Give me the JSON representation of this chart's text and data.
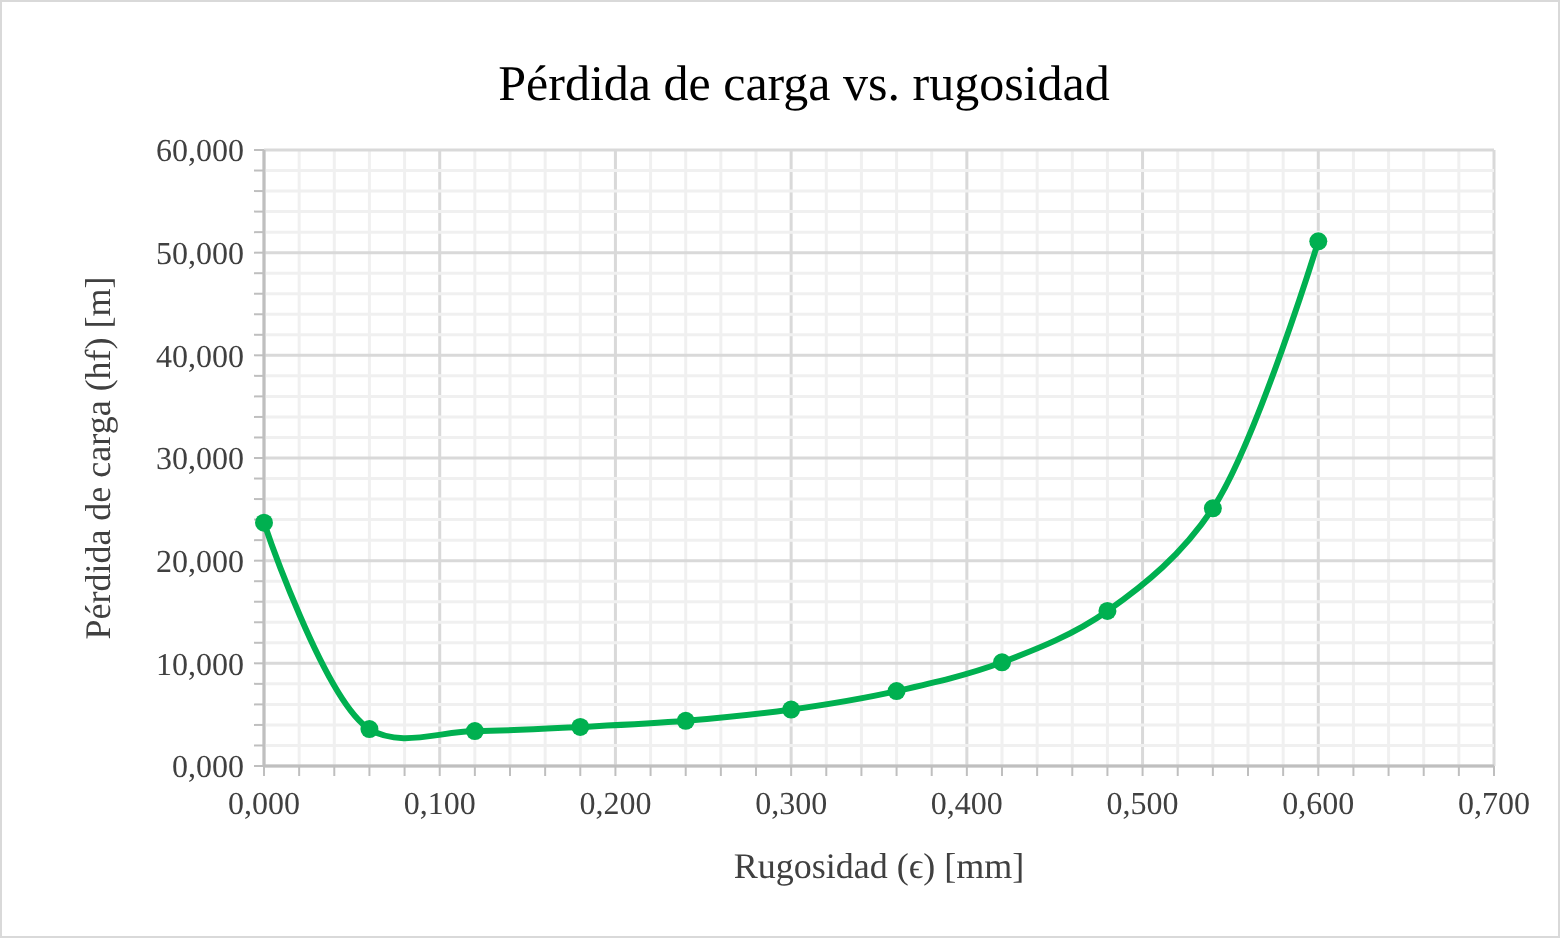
{
  "chart_data": {
    "type": "line",
    "title": "Pérdida de carga vs. rugosidad",
    "xlabel": "Rugosidad (ϵ) [mm]",
    "ylabel": "Pérdida de carga (hf) [m]",
    "x": [
      0,
      0.06,
      0.12,
      0.18,
      0.24,
      0.3,
      0.36,
      0.42,
      0.48,
      0.54,
      0.6
    ],
    "series": [
      {
        "color": "#00b050",
        "values": [
          23.7,
          3.6,
          3.4,
          3.8,
          4.4,
          5.5,
          7.3,
          10.1,
          15.1,
          25.1,
          51.1
        ]
      }
    ],
    "xlim": [
      0,
      0.7
    ],
    "ylim": [
      0,
      60
    ],
    "xticks": [
      {
        "value": 0,
        "label": "0,000"
      },
      {
        "value": 0.02,
        "label": null
      },
      {
        "value": 0.04,
        "label": null
      },
      {
        "value": 0.06,
        "label": null
      },
      {
        "value": 0.08,
        "label": null
      },
      {
        "value": 0.1,
        "label": "0,100"
      },
      {
        "value": 0.12,
        "label": null
      },
      {
        "value": 0.14,
        "label": null
      },
      {
        "value": 0.16,
        "label": null
      },
      {
        "value": 0.18,
        "label": null
      },
      {
        "value": 0.2,
        "label": "0,200"
      },
      {
        "value": 0.22,
        "label": null
      },
      {
        "value": 0.24,
        "label": null
      },
      {
        "value": 0.26,
        "label": null
      },
      {
        "value": 0.28,
        "label": null
      },
      {
        "value": 0.3,
        "label": "0,300"
      },
      {
        "value": 0.32,
        "label": null
      },
      {
        "value": 0.34,
        "label": null
      },
      {
        "value": 0.36,
        "label": null
      },
      {
        "value": 0.38,
        "label": null
      },
      {
        "value": 0.4,
        "label": "0,400"
      },
      {
        "value": 0.42,
        "label": null
      },
      {
        "value": 0.44,
        "label": null
      },
      {
        "value": 0.46,
        "label": null
      },
      {
        "value": 0.48,
        "label": null
      },
      {
        "value": 0.5,
        "label": "0,500"
      },
      {
        "value": 0.52,
        "label": null
      },
      {
        "value": 0.54,
        "label": null
      },
      {
        "value": 0.56,
        "label": null
      },
      {
        "value": 0.58,
        "label": null
      },
      {
        "value": 0.6,
        "label": "0,600"
      },
      {
        "value": 0.62,
        "label": null
      },
      {
        "value": 0.64,
        "label": null
      },
      {
        "value": 0.66,
        "label": null
      },
      {
        "value": 0.68,
        "label": null
      },
      {
        "value": 0.7,
        "label": "0,700"
      }
    ],
    "yticks": [
      {
        "value": 0,
        "label": "0,000"
      },
      {
        "value": 2,
        "label": null
      },
      {
        "value": 4,
        "label": null
      },
      {
        "value": 6,
        "label": null
      },
      {
        "value": 8,
        "label": null
      },
      {
        "value": 10,
        "label": "10,000"
      },
      {
        "value": 12,
        "label": null
      },
      {
        "value": 14,
        "label": null
      },
      {
        "value": 16,
        "label": null
      },
      {
        "value": 18,
        "label": null
      },
      {
        "value": 20,
        "label": "20,000"
      },
      {
        "value": 22,
        "label": null
      },
      {
        "value": 24,
        "label": null
      },
      {
        "value": 26,
        "label": null
      },
      {
        "value": 28,
        "label": null
      },
      {
        "value": 30,
        "label": "30,000"
      },
      {
        "value": 32,
        "label": null
      },
      {
        "value": 34,
        "label": null
      },
      {
        "value": 36,
        "label": null
      },
      {
        "value": 38,
        "label": null
      },
      {
        "value": 40,
        "label": "40,000"
      },
      {
        "value": 42,
        "label": null
      },
      {
        "value": 44,
        "label": null
      },
      {
        "value": 46,
        "label": null
      },
      {
        "value": 48,
        "label": null
      },
      {
        "value": 50,
        "label": "50,000"
      },
      {
        "value": 52,
        "label": null
      },
      {
        "value": 54,
        "label": null
      },
      {
        "value": 56,
        "label": null
      },
      {
        "value": 58,
        "label": null
      },
      {
        "value": 60,
        "label": "60,000"
      }
    ],
    "grid": true,
    "marker": "circle",
    "line_style": "solid"
  }
}
